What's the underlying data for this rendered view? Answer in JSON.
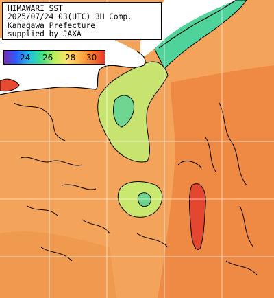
{
  "header": {
    "line1": "HIMAWARI SST",
    "line2": "2025/07/24 03(UTC) 3H Comp.",
    "line3": "Kanagawa Prefecture",
    "line4": "supplied by JAXA"
  },
  "colorbar": {
    "ticks": [
      "24",
      "26",
      "28",
      "30"
    ],
    "tick_values": [
      24,
      26,
      28,
      30
    ],
    "range": [
      22.5,
      31.5
    ],
    "colors": [
      "#7a2fb0",
      "#2b5cff",
      "#21c0e8",
      "#3fe08a",
      "#b8f05a",
      "#ffe36a",
      "#ffb14a",
      "#ff7a2a",
      "#e8352a"
    ]
  },
  "map_colors": {
    "land": "#ffffff",
    "warm_sea": "#f3a35a",
    "warmer_sea": "#ee8440",
    "hot_core": "#e8452f",
    "cool_patch": "#bfe27a",
    "cold_patch": "#5fd48c",
    "coast_line": "#000000",
    "grid_line": "#ffffff"
  }
}
